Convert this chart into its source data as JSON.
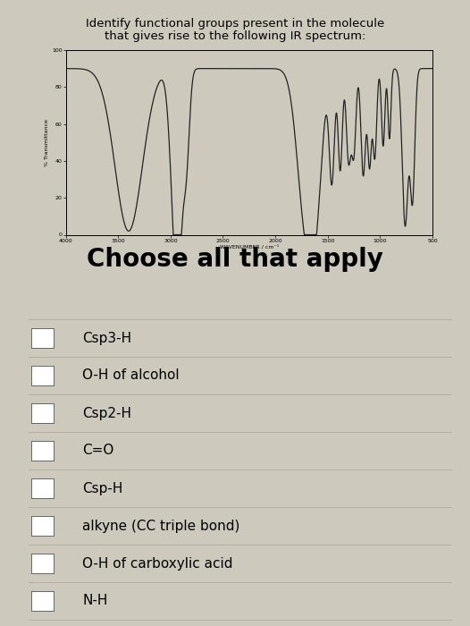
{
  "title_line1": "Identify functional groups present in the molecule",
  "title_line2": "that gives rise to the following IR spectrum:",
  "choose_text": "Choose all that apply",
  "options": [
    "Csp3-H",
    "O-H of alcohol",
    "Csp2-H",
    "C=O",
    "Csp-H",
    "alkyne (CC triple bond)",
    "O-H of carboxylic acid",
    "N-H"
  ],
  "bg_color": "#cdc9bc",
  "plot_bg": "#cdc9bc",
  "line_color": "#222222",
  "title_fontsize": 9.5,
  "choose_fontsize": 20,
  "option_fontsize": 11,
  "divider_color": "#aaaaaa",
  "white": "#ffffff"
}
